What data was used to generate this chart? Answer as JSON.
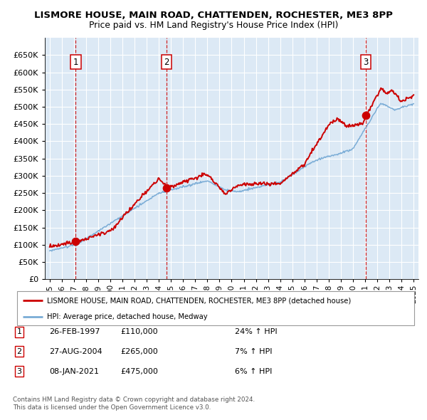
{
  "title": "LISMORE HOUSE, MAIN ROAD, CHATTENDEN, ROCHESTER, ME3 8PP",
  "subtitle": "Price paid vs. HM Land Registry's House Price Index (HPI)",
  "legend_line1": "LISMORE HOUSE, MAIN ROAD, CHATTENDEN, ROCHESTER, ME3 8PP (detached house)",
  "legend_line2": "HPI: Average price, detached house, Medway",
  "footer1": "Contains HM Land Registry data © Crown copyright and database right 2024.",
  "footer2": "This data is licensed under the Open Government Licence v3.0.",
  "transactions": [
    {
      "num": 1,
      "date": "26-FEB-1997",
      "price": 110000,
      "hpi": "24% ↑ HPI",
      "year": 1997.15
    },
    {
      "num": 2,
      "date": "27-AUG-2004",
      "price": 265000,
      "hpi": "7% ↑ HPI",
      "year": 2004.65
    },
    {
      "num": 3,
      "date": "08-JAN-2021",
      "price": 475000,
      "hpi": "6% ↑ HPI",
      "year": 2021.03
    }
  ],
  "hpi_color": "#7aacd6",
  "price_color": "#cc0000",
  "bg_color": "#dce9f5",
  "grid_color": "#ffffff",
  "vline_color": "#cc0000",
  "ylim": [
    0,
    700000
  ],
  "yticks": [
    0,
    50000,
    100000,
    150000,
    200000,
    250000,
    300000,
    350000,
    400000,
    450000,
    500000,
    550000,
    600000,
    650000
  ],
  "xlim_start": 1994.6,
  "xlim_end": 2025.4,
  "xticks": [
    1995,
    1996,
    1997,
    1998,
    1999,
    2000,
    2001,
    2002,
    2003,
    2004,
    2005,
    2006,
    2007,
    2008,
    2009,
    2010,
    2011,
    2012,
    2013,
    2014,
    2015,
    2016,
    2017,
    2018,
    2019,
    2020,
    2021,
    2022,
    2023,
    2024,
    2025
  ]
}
